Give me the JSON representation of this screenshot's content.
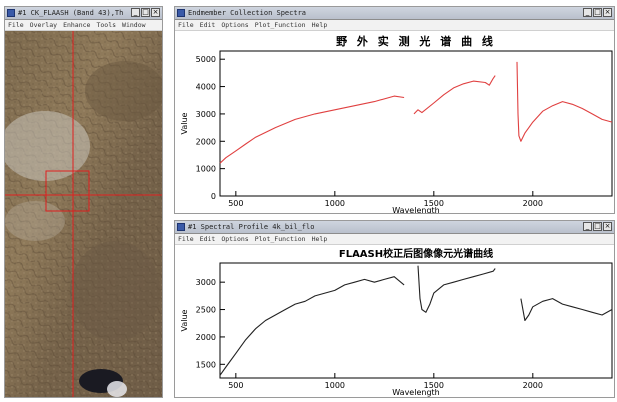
{
  "image_window": {
    "title": "#1 CK_FLAASH (Band 43),Th",
    "menu": [
      "File",
      "Overlay",
      "Enhance",
      "Tools",
      "Window"
    ]
  },
  "field_window": {
    "title": "Endmember Collection Spectra",
    "menu": [
      "File",
      "Edit",
      "Options",
      "Plot_Function",
      "Help"
    ]
  },
  "flaash_window": {
    "title": "#1 Spectral Profile 4k_bil_flo",
    "menu": [
      "File",
      "Edit",
      "Options",
      "Plot_Function",
      "Help"
    ]
  },
  "window_buttons": {
    "minimize": "_",
    "maximize": "□",
    "close": "×"
  },
  "chart_data": [
    {
      "type": "line",
      "title": "野 外 实 测 光 谱 曲 线",
      "xlabel": "Wavelength",
      "ylabel": "Value",
      "xlim": [
        420,
        2400
      ],
      "ylim": [
        0,
        5300
      ],
      "xticks": [
        500,
        1000,
        1500,
        2000
      ],
      "yticks": [
        0,
        1000,
        2000,
        3000,
        4000,
        5000
      ],
      "color": "#e04040",
      "segments": [
        [
          [
            420,
            1200
          ],
          [
            450,
            1400
          ],
          [
            500,
            1650
          ],
          [
            550,
            1900
          ],
          [
            600,
            2150
          ],
          [
            700,
            2500
          ],
          [
            800,
            2800
          ],
          [
            900,
            3000
          ],
          [
            1000,
            3150
          ],
          [
            1100,
            3300
          ],
          [
            1200,
            3450
          ],
          [
            1300,
            3650
          ],
          [
            1350,
            3600
          ]
        ],
        [
          [
            1400,
            3000
          ],
          [
            1420,
            3150
          ],
          [
            1440,
            3050
          ],
          [
            1500,
            3400
          ],
          [
            1550,
            3700
          ],
          [
            1600,
            3950
          ],
          [
            1650,
            4100
          ],
          [
            1700,
            4200
          ],
          [
            1760,
            4150
          ],
          [
            1780,
            4050
          ],
          [
            1800,
            4300
          ],
          [
            1810,
            4400
          ]
        ],
        [
          [
            1920,
            4900
          ],
          [
            1925,
            3000
          ],
          [
            1930,
            2200
          ],
          [
            1940,
            2000
          ],
          [
            1960,
            2300
          ],
          [
            2000,
            2700
          ],
          [
            2050,
            3100
          ],
          [
            2100,
            3300
          ],
          [
            2150,
            3450
          ],
          [
            2200,
            3350
          ],
          [
            2250,
            3200
          ],
          [
            2300,
            3000
          ],
          [
            2350,
            2800
          ],
          [
            2400,
            2700
          ]
        ]
      ]
    },
    {
      "type": "line",
      "title": "FLAASH校正后图像像元光谱曲线",
      "xlabel": "Wavelength",
      "ylabel": "Value",
      "xlim": [
        420,
        2400
      ],
      "ylim": [
        1250,
        3350
      ],
      "xticks": [
        500,
        1000,
        1500,
        2000
      ],
      "yticks": [
        1500,
        2000,
        2500,
        3000
      ],
      "color": "#222222",
      "segments": [
        [
          [
            420,
            1300
          ],
          [
            450,
            1450
          ],
          [
            500,
            1700
          ],
          [
            550,
            1950
          ],
          [
            600,
            2150
          ],
          [
            650,
            2300
          ],
          [
            700,
            2400
          ],
          [
            750,
            2500
          ],
          [
            800,
            2600
          ],
          [
            850,
            2650
          ],
          [
            900,
            2750
          ],
          [
            950,
            2800
          ],
          [
            1000,
            2850
          ],
          [
            1050,
            2950
          ],
          [
            1100,
            3000
          ],
          [
            1150,
            3050
          ],
          [
            1200,
            3000
          ],
          [
            1250,
            3050
          ],
          [
            1300,
            3100
          ],
          [
            1350,
            2950
          ]
        ],
        [
          [
            1420,
            3300
          ],
          [
            1430,
            2700
          ],
          [
            1440,
            2500
          ],
          [
            1460,
            2450
          ],
          [
            1480,
            2600
          ],
          [
            1500,
            2800
          ],
          [
            1550,
            2950
          ],
          [
            1600,
            3000
          ],
          [
            1650,
            3050
          ],
          [
            1700,
            3100
          ],
          [
            1750,
            3150
          ],
          [
            1800,
            3200
          ],
          [
            1810,
            3250
          ]
        ],
        [
          [
            1940,
            2700
          ],
          [
            1960,
            2300
          ],
          [
            1980,
            2400
          ],
          [
            2000,
            2550
          ],
          [
            2050,
            2650
          ],
          [
            2100,
            2700
          ],
          [
            2150,
            2600
          ],
          [
            2200,
            2550
          ],
          [
            2250,
            2500
          ],
          [
            2300,
            2450
          ],
          [
            2350,
            2400
          ],
          [
            2400,
            2500
          ]
        ]
      ]
    }
  ]
}
